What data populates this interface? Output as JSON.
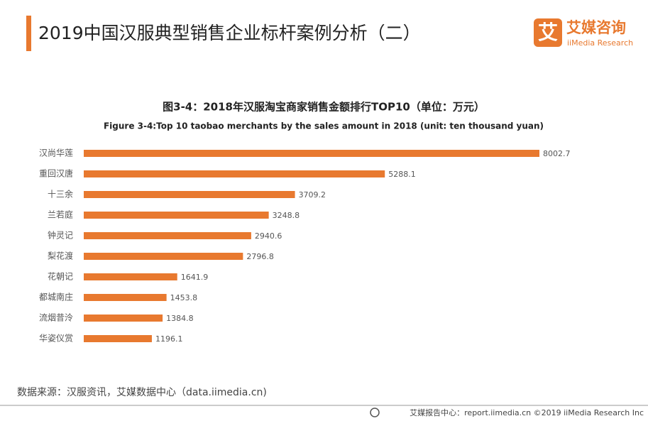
{
  "header": {
    "title": "2019中国汉服典型销售企业标杆案例分析（二）",
    "logo_icon": "艾",
    "logo_name": "艾媒咨询",
    "logo_sub": "iiMedia Research"
  },
  "chart_data": {
    "type": "bar",
    "title": "图3-4：2018年汉服淘宝商家销售金额排行TOP10（单位：万元）",
    "subtitle": "Figure 3-4:Top 10 taobao merchants by the sales amount in 2018 (unit: ten thousand yuan)",
    "categories": [
      "汉尚华莲",
      "重回汉唐",
      "十三余",
      "兰若庭",
      "钟灵记",
      "梨花渡",
      "花朝记",
      "都城南庄",
      "流烟昔泠",
      "华姿仪赏"
    ],
    "values": [
      8002.7,
      5288.1,
      3709.2,
      3248.8,
      2940.6,
      2796.8,
      1641.9,
      1453.8,
      1384.8,
      1196.1
    ],
    "color": "#e8792f"
  },
  "source": "数据来源：汉服资讯，艾媒数据中心（data.iimedia.cn)",
  "footer": "艾媒报告中心：report.iimedia.cn  ©2019  iiMedia Research  Inc"
}
